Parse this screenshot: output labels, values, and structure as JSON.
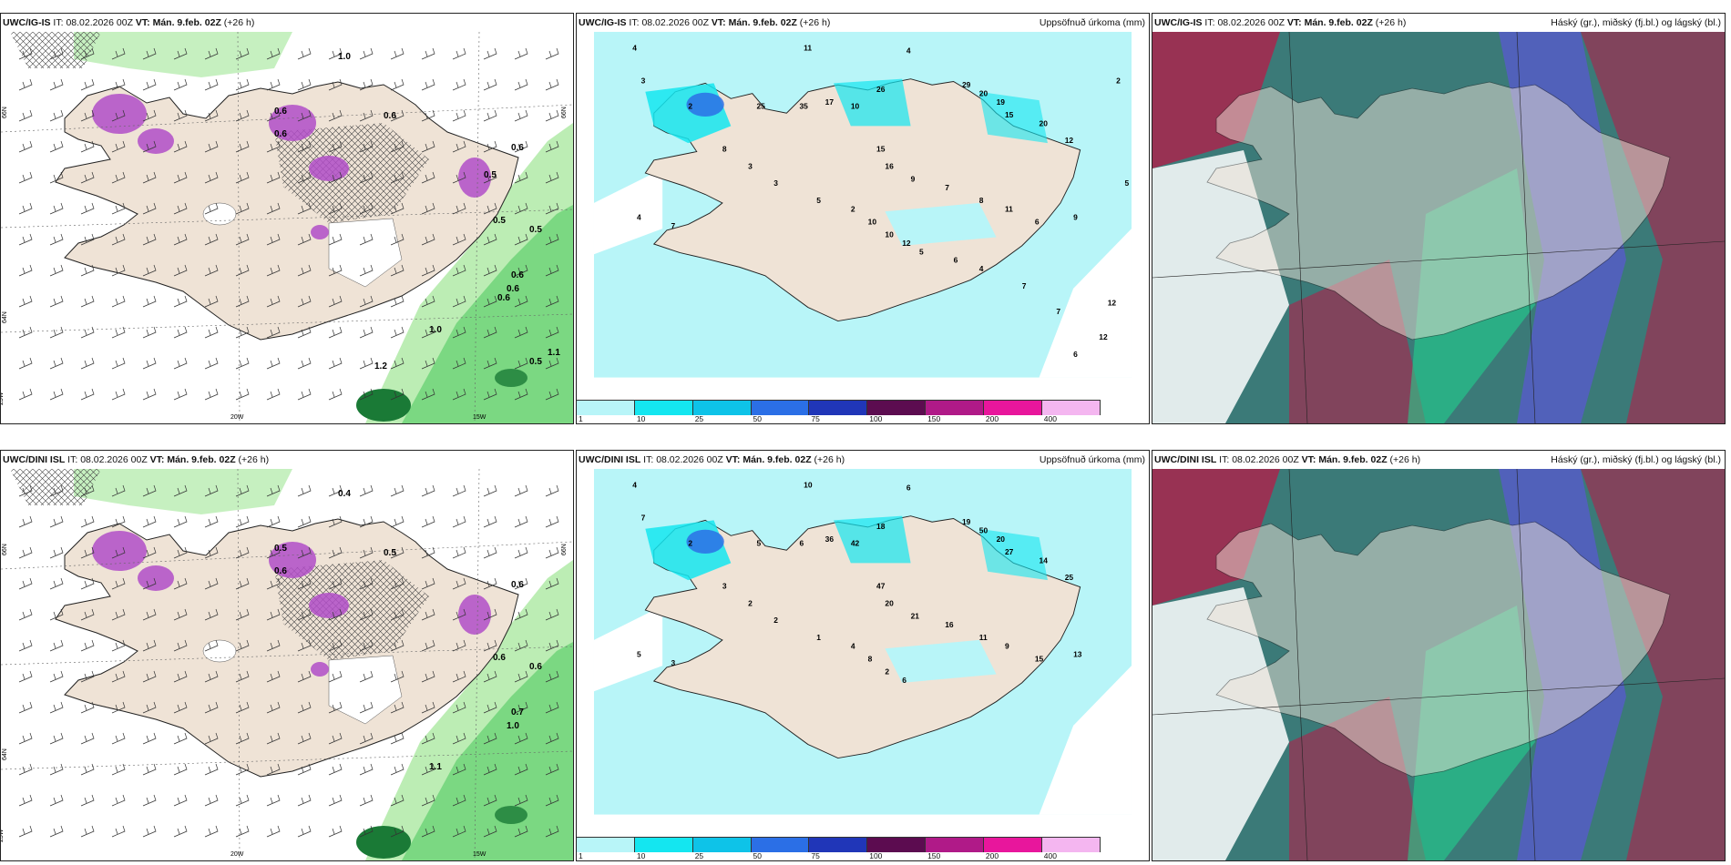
{
  "panels": [
    {
      "model": "UWC/IG-IS",
      "it_label": "IT:",
      "it": "08.02.2026 00Z",
      "vt_label": "VT:",
      "vt": "Mán. 9.feb. 02Z",
      "lead": "(+26 h)",
      "right_title": "",
      "values": [
        "1.0",
        "0.6",
        "0.6",
        "0.6",
        "0.6",
        "0.5",
        "0.5",
        "0.6",
        "0.6",
        "1.0",
        "1.1",
        "1.2",
        "0.5",
        "0.6",
        "0.5"
      ],
      "axis_labels": [
        "20W",
        "15W",
        "25W",
        "66N",
        "64N",
        "66N"
      ]
    },
    {
      "model": "UWC/IG-IS",
      "it_label": "IT:",
      "it": "08.02.2026 00Z",
      "vt_label": "VT:",
      "vt": "Mán. 9.feb. 02Z",
      "lead": "(+26 h)",
      "right_title": "Uppsöfnuð úrkoma (mm)",
      "values": [
        "4",
        "11",
        "4",
        "3",
        "2",
        "25",
        "35",
        "17",
        "10",
        "26",
        "29",
        "20",
        "19",
        "15",
        "20",
        "12",
        "15",
        "16",
        "9",
        "7",
        "8",
        "11",
        "6",
        "9",
        "4",
        "7",
        "8",
        "3",
        "3",
        "5",
        "2",
        "10",
        "10",
        "12",
        "5",
        "6",
        "4",
        "7",
        "7",
        "6",
        "12",
        "12",
        "5",
        "2"
      ],
      "colorbar": {
        "ticks": [
          "1",
          "10",
          "25",
          "50",
          "75",
          "100",
          "150",
          "200",
          "400"
        ],
        "colors": [
          "#b8f5f8",
          "#14e6f0",
          "#0ec3e8",
          "#2b6fe6",
          "#2036b8",
          "#5c0c50",
          "#b01a88",
          "#e8169c",
          "#f4b6f0"
        ]
      }
    },
    {
      "model": "UWC/IG-IS",
      "it_label": "IT:",
      "it": "08.02.2026 00Z",
      "vt_label": "VT:",
      "vt": "Mán. 9.feb. 02Z",
      "lead": "(+26 h)",
      "right_title": "Háský (gr.), miðský (fj.bl.) og lágský (bl.)"
    },
    {
      "model": "UWC/DINI ISL",
      "it_label": "IT:",
      "it": "08.02.2026 00Z",
      "vt_label": "VT:",
      "vt": "Mán. 9.feb. 02Z",
      "lead": "(+26 h)",
      "right_title": "",
      "values": [
        "0.4",
        "0.5",
        "0.5",
        "0.6",
        "0.6",
        "0.6",
        "0.6",
        "0.7",
        "1.0",
        "1.1"
      ],
      "axis_labels": [
        "20W",
        "15W",
        "25W",
        "66N",
        "64N",
        "66N"
      ]
    },
    {
      "model": "UWC/DINI ISL",
      "it_label": "IT:",
      "it": "08.02.2026 00Z",
      "vt_label": "VT:",
      "vt": "Mán. 9.feb. 02Z",
      "lead": "(+26 h)",
      "right_title": "Uppsöfnuð úrkoma (mm)",
      "values": [
        "4",
        "10",
        "6",
        "7",
        "2",
        "5",
        "6",
        "36",
        "42",
        "18",
        "19",
        "50",
        "20",
        "27",
        "14",
        "25",
        "47",
        "20",
        "21",
        "16",
        "11",
        "9",
        "15",
        "13",
        "5",
        "3",
        "3",
        "2",
        "2",
        "1",
        "4",
        "8",
        "2",
        "6"
      ],
      "colorbar": {
        "ticks": [
          "1",
          "10",
          "25",
          "50",
          "75",
          "100",
          "150",
          "200",
          "400"
        ],
        "colors": [
          "#b8f5f8",
          "#14e6f0",
          "#0ec3e8",
          "#2b6fe6",
          "#2036b8",
          "#5c0c50",
          "#b01a88",
          "#e8169c",
          "#f4b6f0"
        ]
      }
    },
    {
      "model": "UWC/DINI ISL",
      "it_label": "IT:",
      "it": "08.02.2026 00Z",
      "vt_label": "VT:",
      "vt": "Mán. 9.feb. 02Z",
      "lead": "(+26 h)",
      "right_title": "Háský (gr.), miðský (fj.bl.) og lágský (bl.)"
    }
  ],
  "colors": {
    "land": "#efe3d6",
    "sea_precip": "#b8f5f8",
    "light_green": "#b8ecb0",
    "mid_green": "#5fcf6c",
    "dark_green": "#1a7a36",
    "purple": "#b04ec8",
    "cloud_teal": "#3b7a78",
    "cloud_green": "#1fd890",
    "cloud_blue": "#5a5ad0",
    "cloud_red": "#b0204a"
  }
}
